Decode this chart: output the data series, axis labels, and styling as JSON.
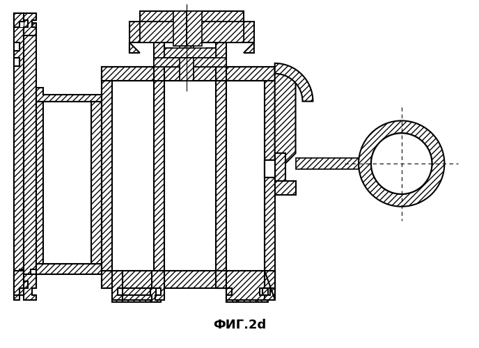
{
  "title": "ФИГ.2d",
  "title_fontsize": 13,
  "bg_color": "#ffffff",
  "line_color": "#000000",
  "fig_width": 6.88,
  "fig_height": 5.0,
  "dpi": 100
}
